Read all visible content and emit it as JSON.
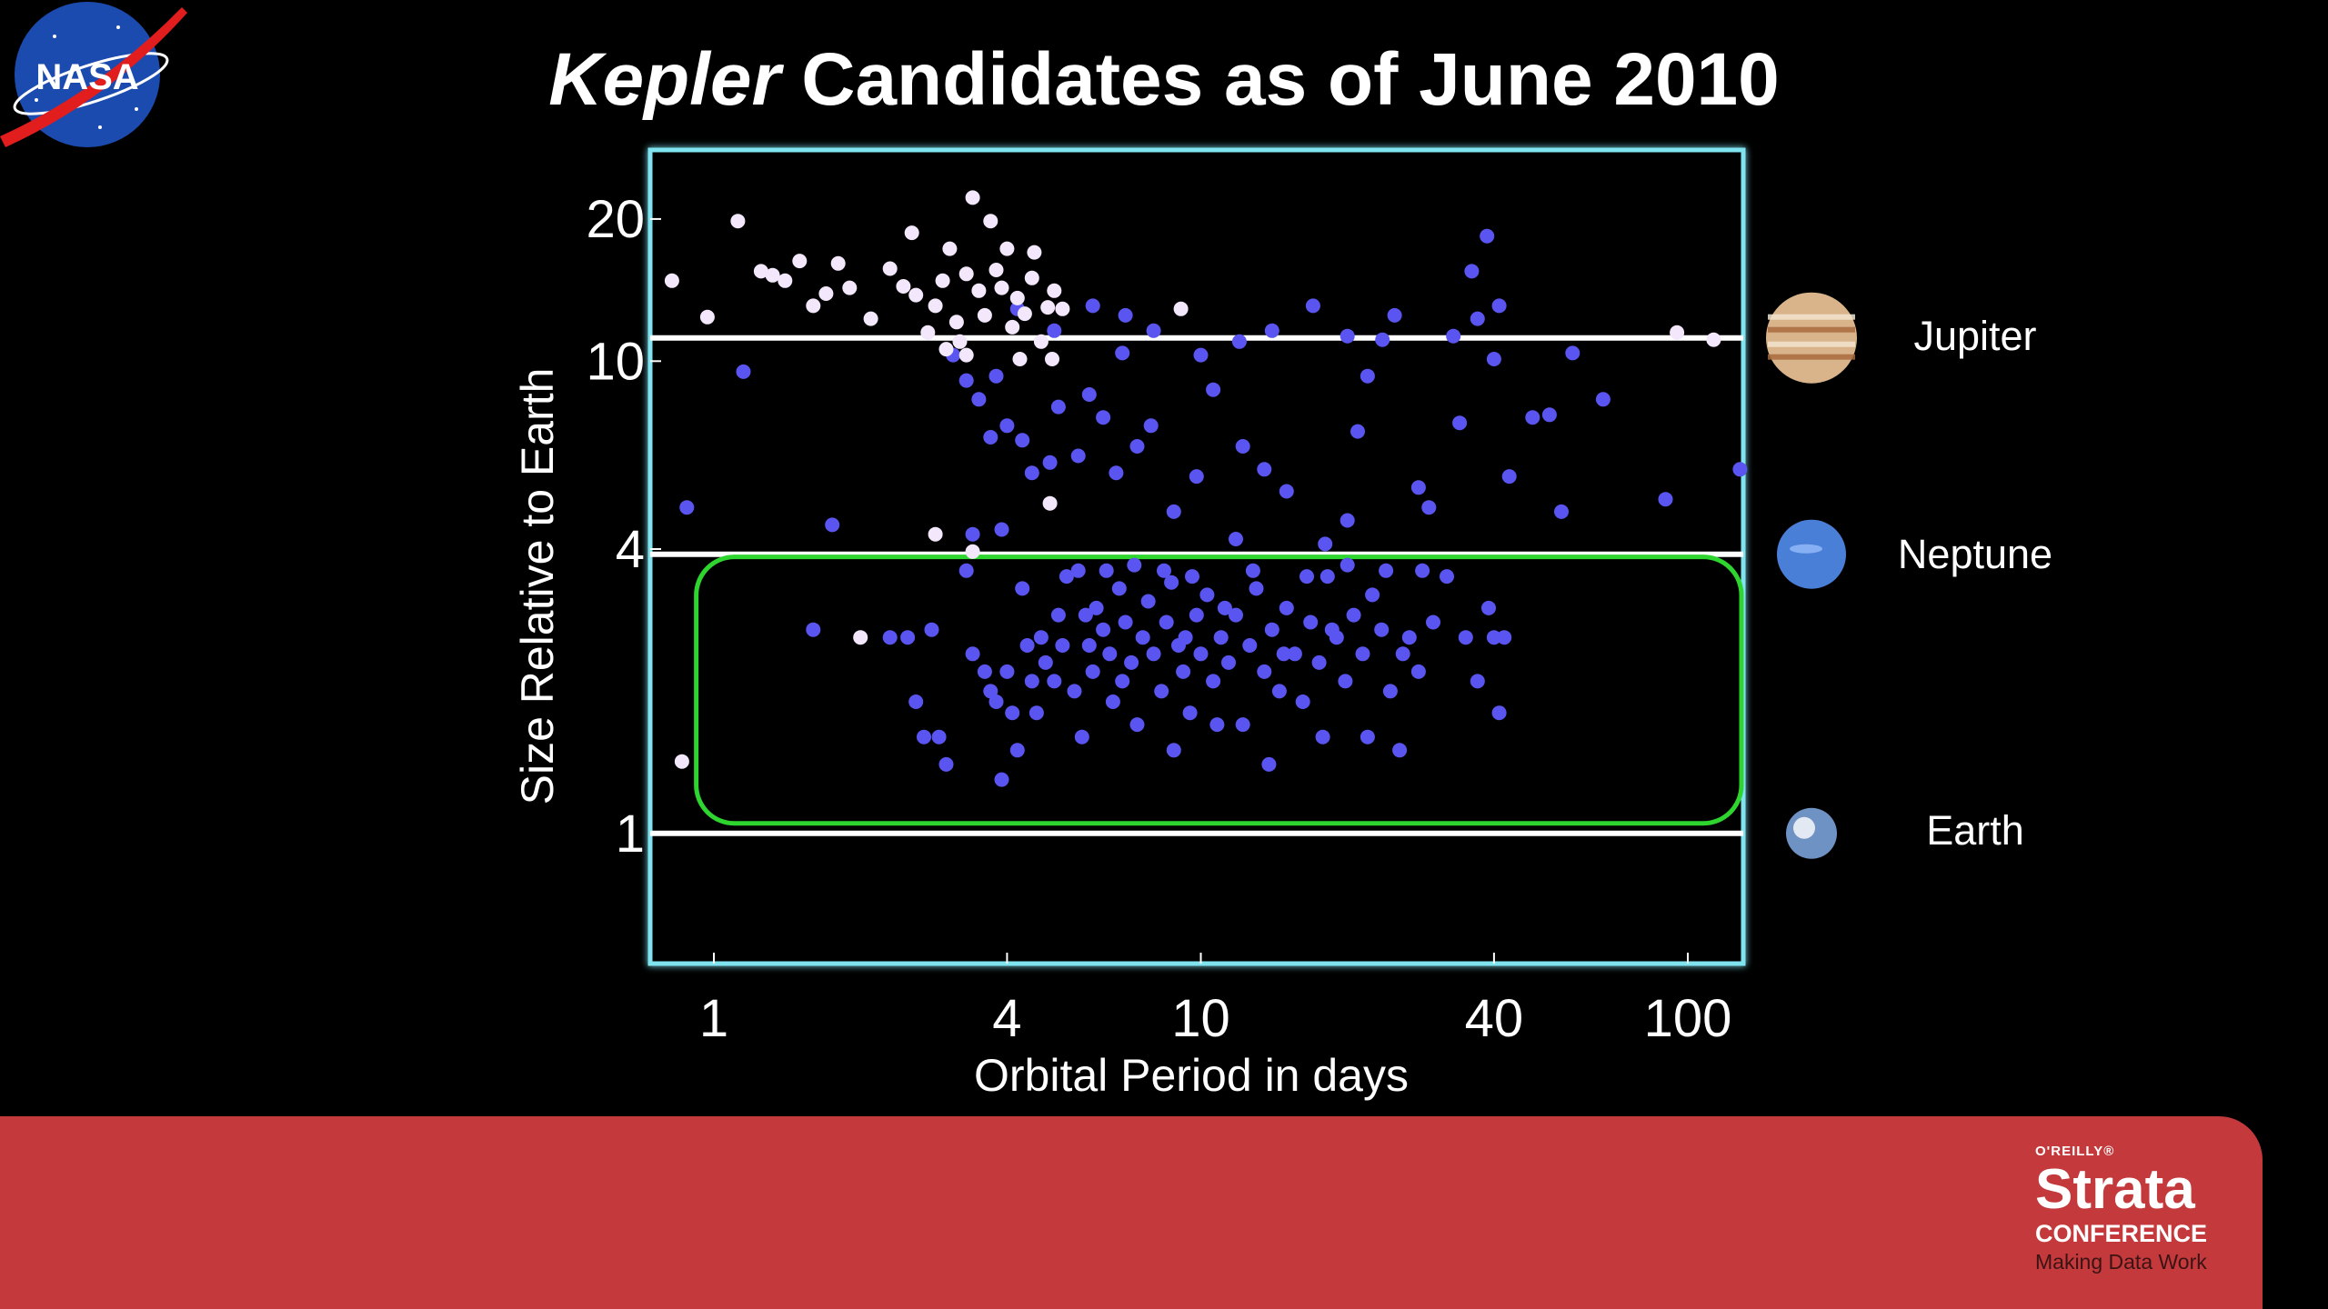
{
  "slide": {
    "title_italic": "Kepler",
    "title_rest": " Candidates as of June 2010",
    "logo_text": "NASA",
    "footer": {
      "publisher": "O'REILLY®",
      "brand": "Strata",
      "event": "CONFERENCE",
      "tagline": "Making Data Work"
    }
  },
  "planets": [
    {
      "name": "Jupiter",
      "y": 11.2,
      "color": "#d9b48a",
      "icon": "jupiter-icon"
    },
    {
      "name": "Neptune",
      "y": 3.9,
      "color": "#4a7fd8",
      "icon": "neptune-icon"
    },
    {
      "name": "Earth",
      "y": 1.0,
      "color": "#6f92c4",
      "icon": "earth-icon"
    }
  ],
  "colors": {
    "plot_border": "#7fe3f0",
    "highlight_box": "#2fd52f",
    "small_planets": "#5a55f0",
    "giant_planets": "#f3e7fb",
    "reference_lines": "#ffffff",
    "footer": "#c4393b"
  },
  "chart_data": {
    "type": "scatter",
    "xlabel": "Orbital Period in days",
    "ylabel": "Size Relative to Earth",
    "xscale": "log",
    "yscale": "log",
    "xlim": [
      0.74,
      130
    ],
    "ylim": [
      0.53,
      28
    ],
    "xticks": [
      1,
      4,
      10,
      40,
      100
    ],
    "yticks": [
      1,
      4,
      10,
      20
    ],
    "reference_lines_y": [
      11.2,
      3.9,
      1.0
    ],
    "highlight_region": {
      "x": [
        0.92,
        130
      ],
      "y": [
        1.05,
        3.85
      ]
    },
    "series": [
      {
        "color": "#5a55f0",
        "points": [
          [
            1.6,
            2.7
          ],
          [
            2.3,
            2.6
          ],
          [
            2.5,
            2.6
          ],
          [
            2.8,
            2.7
          ],
          [
            2.6,
            1.9
          ],
          [
            2.7,
            1.6
          ],
          [
            2.9,
            1.6
          ],
          [
            3.0,
            1.4
          ],
          [
            3.4,
            2.4
          ],
          [
            3.6,
            2.2
          ],
          [
            3.7,
            2.0
          ],
          [
            3.8,
            1.9
          ],
          [
            3.9,
            1.3
          ],
          [
            4.0,
            2.2
          ],
          [
            4.1,
            1.8
          ],
          [
            4.2,
            1.5
          ],
          [
            4.4,
            2.5
          ],
          [
            4.5,
            2.1
          ],
          [
            4.6,
            1.8
          ],
          [
            4.7,
            2.6
          ],
          [
            4.8,
            2.3
          ],
          [
            5.0,
            2.1
          ],
          [
            5.2,
            2.5
          ],
          [
            5.3,
            3.5
          ],
          [
            5.5,
            2.0
          ],
          [
            5.6,
            3.6
          ],
          [
            5.8,
            2.9
          ],
          [
            5.9,
            2.5
          ],
          [
            6.0,
            2.2
          ],
          [
            6.1,
            3.0
          ],
          [
            6.3,
            2.7
          ],
          [
            6.5,
            2.4
          ],
          [
            6.6,
            1.9
          ],
          [
            6.8,
            3.3
          ],
          [
            7.0,
            2.8
          ],
          [
            7.2,
            2.3
          ],
          [
            7.4,
            1.7
          ],
          [
            7.6,
            2.6
          ],
          [
            7.8,
            3.1
          ],
          [
            8.0,
            2.4
          ],
          [
            8.3,
            2.0
          ],
          [
            8.5,
            2.8
          ],
          [
            8.7,
            3.4
          ],
          [
            9.0,
            2.5
          ],
          [
            9.2,
            2.2
          ],
          [
            9.5,
            1.8
          ],
          [
            9.8,
            2.9
          ],
          [
            10.0,
            2.4
          ],
          [
            10.3,
            3.2
          ],
          [
            10.6,
            2.1
          ],
          [
            11.0,
            2.6
          ],
          [
            11.4,
            2.3
          ],
          [
            11.8,
            2.9
          ],
          [
            12.2,
            1.7
          ],
          [
            12.6,
            2.5
          ],
          [
            13.0,
            3.3
          ],
          [
            13.5,
            2.2
          ],
          [
            14.0,
            2.7
          ],
          [
            14.5,
            2.0
          ],
          [
            15.0,
            3.0
          ],
          [
            15.6,
            2.4
          ],
          [
            16.2,
            1.9
          ],
          [
            16.8,
            2.8
          ],
          [
            17.5,
            2.3
          ],
          [
            18.2,
            3.5
          ],
          [
            19.0,
            2.6
          ],
          [
            19.8,
            2.1
          ],
          [
            20.6,
            2.9
          ],
          [
            21.5,
            2.4
          ],
          [
            22.5,
            3.2
          ],
          [
            23.5,
            2.7
          ],
          [
            24.5,
            2.0
          ],
          [
            25.6,
            1.5
          ],
          [
            26.8,
            2.6
          ],
          [
            28.0,
            2.2
          ],
          [
            30.0,
            2.8
          ],
          [
            32.0,
            3.5
          ],
          [
            35.0,
            2.6
          ],
          [
            37.0,
            2.1
          ],
          [
            39.0,
            3.0
          ],
          [
            40.0,
            2.6
          ],
          [
            41.0,
            1.8
          ],
          [
            42.0,
            2.6
          ],
          [
            6.4,
            3.6
          ],
          [
            7.3,
            3.7
          ],
          [
            8.4,
            3.6
          ],
          [
            9.6,
            3.5
          ],
          [
            12.8,
            3.6
          ],
          [
            16.5,
            3.5
          ],
          [
            20.0,
            3.7
          ],
          [
            24.0,
            3.6
          ],
          [
            28.5,
            3.6
          ],
          [
            5.7,
            1.6
          ],
          [
            8.8,
            1.5
          ],
          [
            10.8,
            1.7
          ],
          [
            13.8,
            1.4
          ],
          [
            17.8,
            1.6
          ],
          [
            22.0,
            1.6
          ],
          [
            3.3,
            3.6
          ],
          [
            4.3,
            3.3
          ],
          [
            5.1,
            2.9
          ],
          [
            6.9,
            2.1
          ],
          [
            9.3,
            2.6
          ],
          [
            11.2,
            3.0
          ],
          [
            14.8,
            2.4
          ],
          [
            18.6,
            2.7
          ],
          [
            26.0,
            2.4
          ],
          [
            1.15,
            9.5
          ],
          [
            0.88,
            4.9
          ],
          [
            1.75,
            4.5
          ],
          [
            3.1,
            10.3
          ],
          [
            3.3,
            9.1
          ],
          [
            3.5,
            8.3
          ],
          [
            3.8,
            9.3
          ],
          [
            3.7,
            6.9
          ],
          [
            4.0,
            7.3
          ],
          [
            4.3,
            6.8
          ],
          [
            4.5,
            5.8
          ],
          [
            4.9,
            6.1
          ],
          [
            5.1,
            8.0
          ],
          [
            5.6,
            6.3
          ],
          [
            5.9,
            8.5
          ],
          [
            6.3,
            7.6
          ],
          [
            6.7,
            5.8
          ],
          [
            6.9,
            10.4
          ],
          [
            7.4,
            6.6
          ],
          [
            7.9,
            7.3
          ],
          [
            8.8,
            4.8
          ],
          [
            9.8,
            5.7
          ],
          [
            10.6,
            8.7
          ],
          [
            11.8,
            4.2
          ],
          [
            12.2,
            6.6
          ],
          [
            13.5,
            5.9
          ],
          [
            15.0,
            5.3
          ],
          [
            18.0,
            4.1
          ],
          [
            20.0,
            4.6
          ],
          [
            21.0,
            7.1
          ],
          [
            22.0,
            9.3
          ],
          [
            23.6,
            11.1
          ],
          [
            28.0,
            5.4
          ],
          [
            29.4,
            4.9
          ],
          [
            34.0,
            7.4
          ],
          [
            36.0,
            15.5
          ],
          [
            38.7,
            18.4
          ],
          [
            41.0,
            13.1
          ],
          [
            43.0,
            5.7
          ],
          [
            48.0,
            7.6
          ],
          [
            52.0,
            7.7
          ],
          [
            55.0,
            4.8
          ],
          [
            58.0,
            10.4
          ],
          [
            67.0,
            8.3
          ],
          [
            90.0,
            5.1
          ],
          [
            128.0,
            5.9
          ],
          [
            4.2,
            12.9
          ],
          [
            5.0,
            11.6
          ],
          [
            6.0,
            13.1
          ],
          [
            7.0,
            12.5
          ],
          [
            8.0,
            11.6
          ],
          [
            10.0,
            10.3
          ],
          [
            12.0,
            11.0
          ],
          [
            14.0,
            11.6
          ],
          [
            17.0,
            13.1
          ],
          [
            20.0,
            11.3
          ],
          [
            25.0,
            12.5
          ],
          [
            33.0,
            11.3
          ],
          [
            37.0,
            12.3
          ],
          [
            40.0,
            10.1
          ],
          [
            3.4,
            4.3
          ],
          [
            3.9,
            4.4
          ]
        ]
      },
      {
        "color": "#f3e7fb",
        "points": [
          [
            0.82,
            14.8
          ],
          [
            0.97,
            12.4
          ],
          [
            1.12,
            19.8
          ],
          [
            1.25,
            15.5
          ],
          [
            1.32,
            15.2
          ],
          [
            1.4,
            14.8
          ],
          [
            1.5,
            16.3
          ],
          [
            1.6,
            13.1
          ],
          [
            1.7,
            13.9
          ],
          [
            1.8,
            16.1
          ],
          [
            1.9,
            14.3
          ],
          [
            2.1,
            12.3
          ],
          [
            2.3,
            15.7
          ],
          [
            2.45,
            14.4
          ],
          [
            2.55,
            18.7
          ],
          [
            2.6,
            13.8
          ],
          [
            2.75,
            11.5
          ],
          [
            2.85,
            13.1
          ],
          [
            2.95,
            14.8
          ],
          [
            3.05,
            17.3
          ],
          [
            3.15,
            12.1
          ],
          [
            3.2,
            11.0
          ],
          [
            3.3,
            15.3
          ],
          [
            3.4,
            22.2
          ],
          [
            3.5,
            14.1
          ],
          [
            3.6,
            12.5
          ],
          [
            3.7,
            19.8
          ],
          [
            3.8,
            15.6
          ],
          [
            3.9,
            14.3
          ],
          [
            4.0,
            17.3
          ],
          [
            4.1,
            11.8
          ],
          [
            4.2,
            13.6
          ],
          [
            4.35,
            12.6
          ],
          [
            4.5,
            15.0
          ],
          [
            4.7,
            11.0
          ],
          [
            4.85,
            13.0
          ],
          [
            5.0,
            14.1
          ],
          [
            5.2,
            12.9
          ],
          [
            3.0,
            10.6
          ],
          [
            3.3,
            10.3
          ],
          [
            4.25,
            10.1
          ],
          [
            4.95,
            10.1
          ],
          [
            2.85,
            4.3
          ],
          [
            3.4,
            3.95
          ],
          [
            4.9,
            5.0
          ],
          [
            4.55,
            17.0
          ],
          [
            9.1,
            12.9
          ],
          [
            2.0,
            2.6
          ],
          [
            0.86,
            1.42
          ],
          [
            95.0,
            11.5
          ],
          [
            113.0,
            11.1
          ]
        ]
      }
    ]
  }
}
